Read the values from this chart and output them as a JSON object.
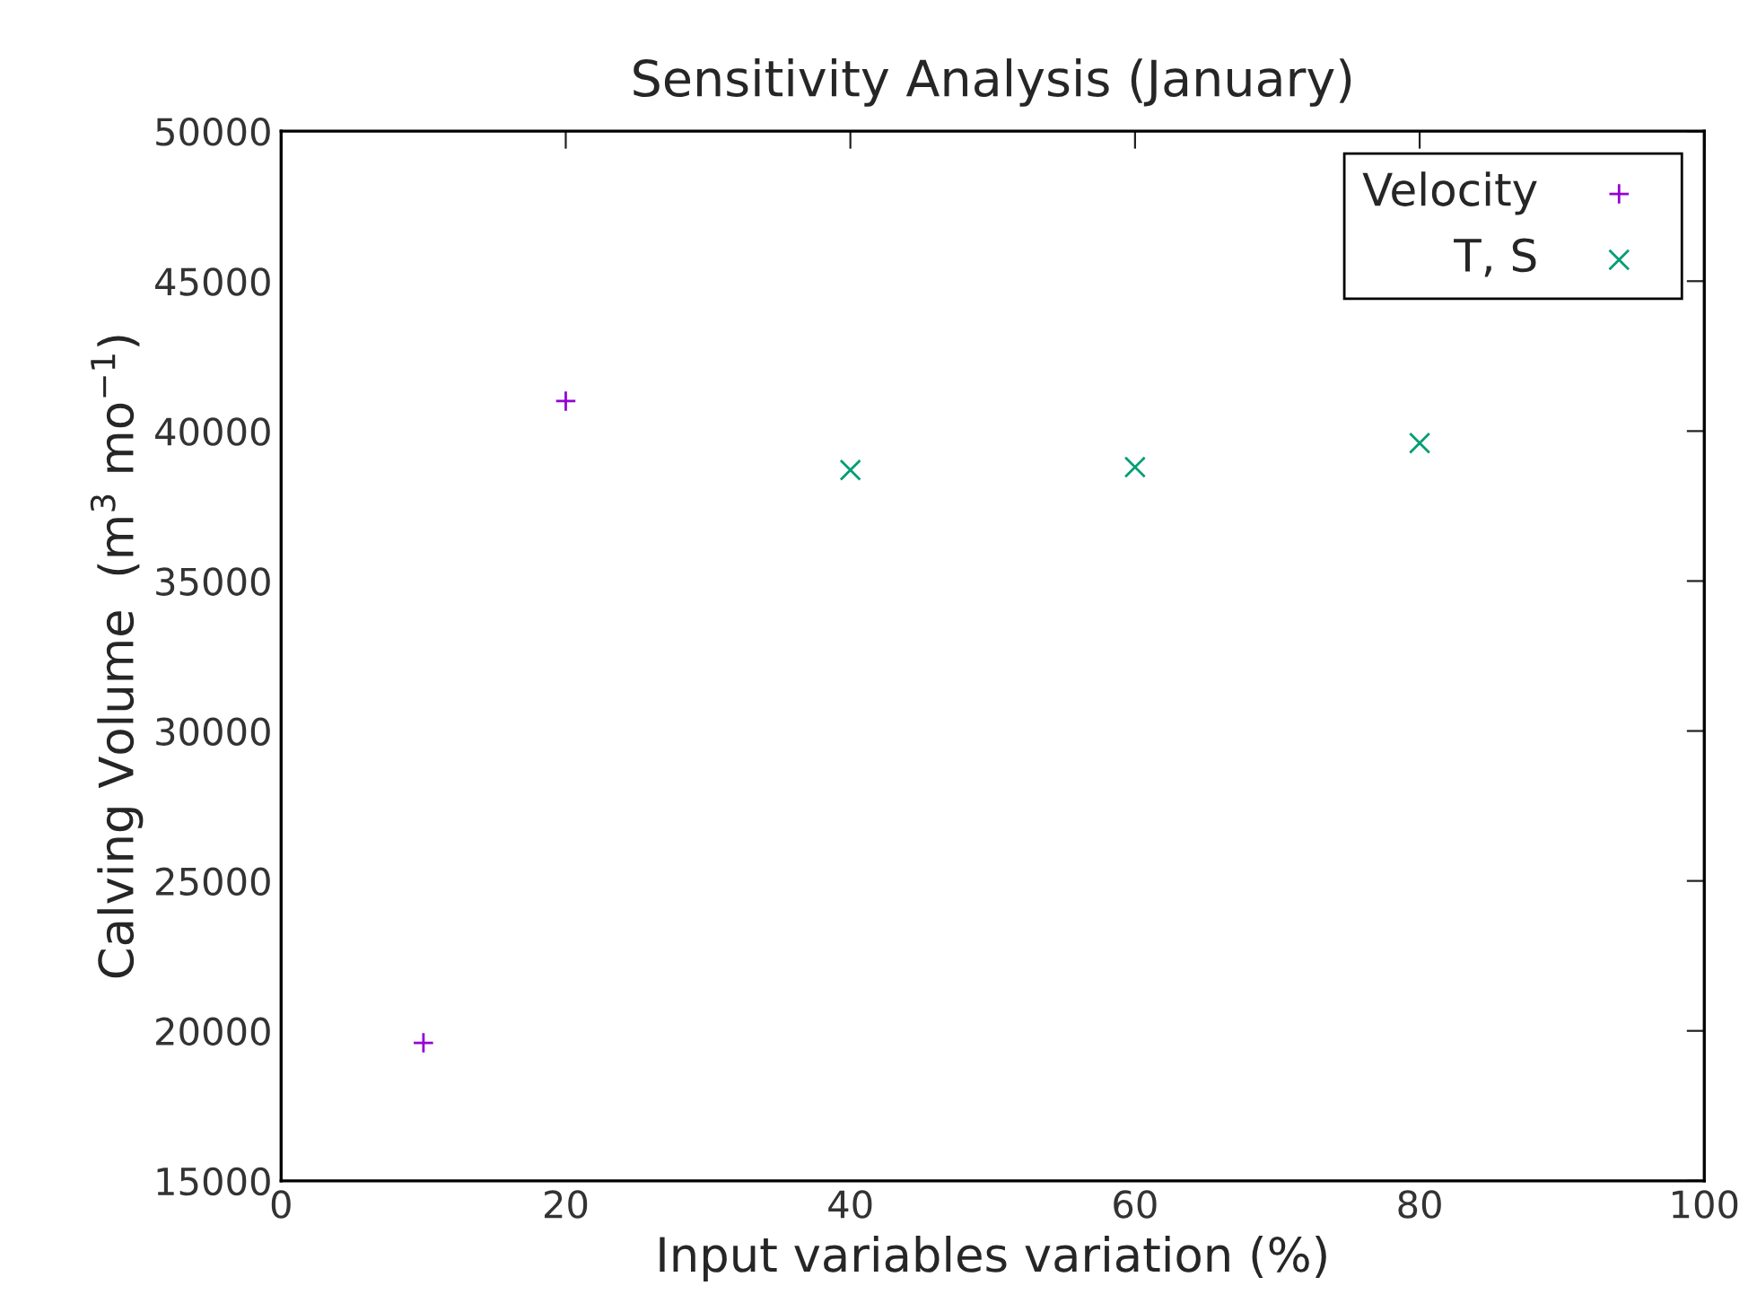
{
  "chart_data": {
    "type": "scatter",
    "title": "Sensitivity Analysis (January)",
    "xlabel": "Input variables variation (%)",
    "ylabel": "Calving Volume  (m$^{3}$ mo$^{−1}$)",
    "xlim": [
      0,
      100
    ],
    "xticks": [
      0,
      20,
      40,
      60,
      80,
      100
    ],
    "ylim": [
      15000,
      50000
    ],
    "yticks": [
      15000,
      20000,
      25000,
      30000,
      35000,
      40000,
      45000,
      50000
    ],
    "grid": false,
    "legend": "top right",
    "series": [
      {
        "name": "Velocity",
        "color": "#9400d3",
        "marker": "cross",
        "x": [
          10,
          20
        ],
        "values": [
          19600,
          41000
        ]
      },
      {
        "name": "T, S",
        "color": "#009e73",
        "marker": "x",
        "x": [
          40,
          60,
          80
        ],
        "values": [
          38700,
          38800,
          39600
        ]
      }
    ]
  }
}
